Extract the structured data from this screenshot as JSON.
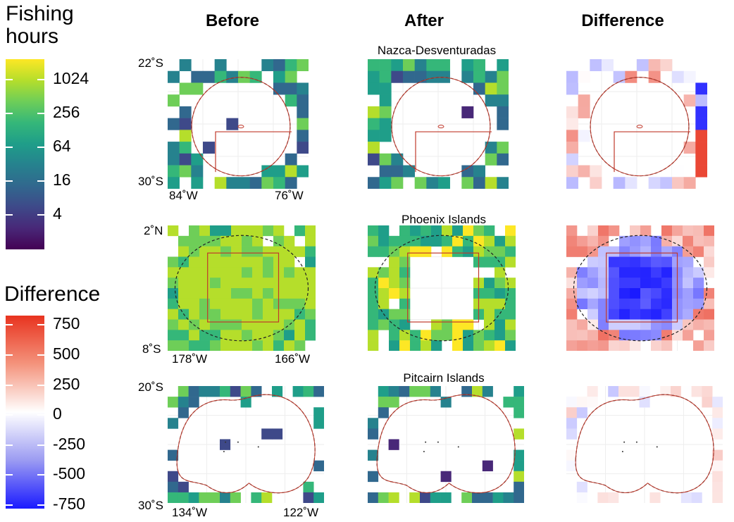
{
  "legend": {
    "fishing": {
      "title_line1": "Fishing",
      "title_line2": "hours",
      "ticks": [
        "1024",
        "256",
        "64",
        "16",
        "4"
      ],
      "colors": [
        "#fde725",
        "#b5de2b",
        "#6ece58",
        "#35b779",
        "#1f9e89",
        "#26828e",
        "#31688e",
        "#3e4989",
        "#482878",
        "#440154"
      ]
    },
    "difference": {
      "title": "Difference",
      "ticks": [
        "750",
        "500",
        "250",
        "0",
        "-250",
        "-500",
        "-750"
      ],
      "colors": [
        "#e8331f",
        "#f4937c",
        "#ffffff",
        "#9b9bf2",
        "#1a1aff"
      ]
    }
  },
  "columns": {
    "before": "Before",
    "after": "After",
    "difference": "Difference"
  },
  "regions": [
    {
      "name": "Nazca-Desventuradas",
      "lat_top": "22˚S",
      "lat_bottom": "30˚S",
      "lon_left": "84˚W",
      "lon_right": "76˚W"
    },
    {
      "name": "Phoenix Islands",
      "lat_top": "2˚N",
      "lat_bottom": "8˚S",
      "lon_left": "178˚W",
      "lon_right": "166˚W"
    },
    {
      "name": "Pitcairn Islands",
      "lat_top": "20˚S",
      "lat_bottom": "30˚S",
      "lon_left": "134˚W",
      "lon_right": "122˚W"
    }
  ],
  "colors": {
    "boundary_line": "#c0392b",
    "dashed_line": "#222222",
    "grid": "#eeeeee"
  }
}
